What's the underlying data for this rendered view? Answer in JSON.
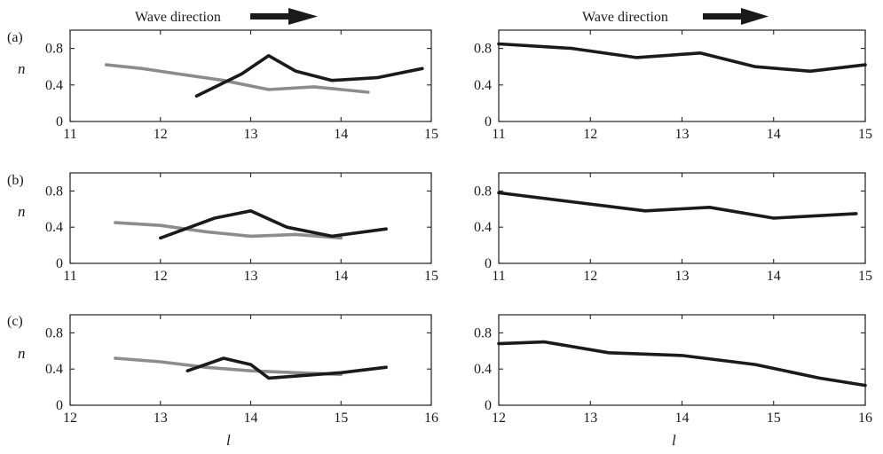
{
  "figure": {
    "header_label": "Wave direction",
    "panel_letters": [
      "(a)",
      "(b)",
      "(c)"
    ],
    "xlabel": "l",
    "ylabel": "n",
    "colors": {
      "current": "#1a1a1a",
      "previous": "#8c8c8c",
      "axis": "#222222"
    }
  },
  "chart_data": [
    {
      "id": "a-left",
      "type": "line",
      "xlabel": "",
      "ylabel": "n",
      "xlim": [
        11,
        15
      ],
      "ylim": [
        0,
        1
      ],
      "xticks": [
        11,
        12,
        13,
        14,
        15
      ],
      "yticks": [
        0,
        0.4,
        0.8
      ],
      "series": [
        {
          "color": "#8c8c8c",
          "points": [
            [
              11.4,
              0.62
            ],
            [
              11.8,
              0.58
            ],
            [
              12.2,
              0.52
            ],
            [
              12.7,
              0.45
            ],
            [
              13.2,
              0.35
            ],
            [
              13.7,
              0.38
            ],
            [
              14.3,
              0.32
            ]
          ]
        },
        {
          "color": "#1a1a1a",
          "points": [
            [
              12.4,
              0.28
            ],
            [
              12.9,
              0.52
            ],
            [
              13.2,
              0.72
            ],
            [
              13.5,
              0.55
            ],
            [
              13.9,
              0.45
            ],
            [
              14.4,
              0.48
            ],
            [
              14.9,
              0.58
            ]
          ]
        }
      ]
    },
    {
      "id": "a-right",
      "type": "line",
      "xlabel": "",
      "ylabel": "",
      "xlim": [
        11,
        15
      ],
      "ylim": [
        0,
        1
      ],
      "xticks": [
        11,
        12,
        13,
        14,
        15
      ],
      "yticks": [
        0,
        0.4,
        0.8
      ],
      "series": [
        {
          "color": "#1a1a1a",
          "points": [
            [
              11.0,
              0.85
            ],
            [
              11.8,
              0.8
            ],
            [
              12.5,
              0.7
            ],
            [
              13.2,
              0.75
            ],
            [
              13.8,
              0.6
            ],
            [
              14.4,
              0.55
            ],
            [
              15.0,
              0.62
            ]
          ]
        }
      ]
    },
    {
      "id": "b-left",
      "type": "line",
      "xlabel": "",
      "ylabel": "n",
      "xlim": [
        11,
        15
      ],
      "ylim": [
        0,
        1
      ],
      "xticks": [
        11,
        12,
        13,
        14,
        15
      ],
      "yticks": [
        0,
        0.4,
        0.8
      ],
      "series": [
        {
          "color": "#8c8c8c",
          "points": [
            [
              11.5,
              0.45
            ],
            [
              12.0,
              0.42
            ],
            [
              12.5,
              0.35
            ],
            [
              13.0,
              0.3
            ],
            [
              13.5,
              0.32
            ],
            [
              14.0,
              0.28
            ]
          ]
        },
        {
          "color": "#1a1a1a",
          "points": [
            [
              12.0,
              0.28
            ],
            [
              12.6,
              0.5
            ],
            [
              13.0,
              0.58
            ],
            [
              13.4,
              0.4
            ],
            [
              13.9,
              0.3
            ],
            [
              14.5,
              0.38
            ]
          ]
        }
      ]
    },
    {
      "id": "b-right",
      "type": "line",
      "xlabel": "",
      "ylabel": "",
      "xlim": [
        11,
        15
      ],
      "ylim": [
        0,
        1
      ],
      "xticks": [
        11,
        12,
        13,
        14,
        15
      ],
      "yticks": [
        0,
        0.4,
        0.8
      ],
      "series": [
        {
          "color": "#1a1a1a",
          "points": [
            [
              11.0,
              0.78
            ],
            [
              11.8,
              0.68
            ],
            [
              12.6,
              0.58
            ],
            [
              13.3,
              0.62
            ],
            [
              14.0,
              0.5
            ],
            [
              14.9,
              0.55
            ]
          ]
        }
      ]
    },
    {
      "id": "c-left",
      "type": "line",
      "xlabel": "l",
      "ylabel": "n",
      "xlim": [
        12,
        16
      ],
      "ylim": [
        0,
        1
      ],
      "xticks": [
        12,
        13,
        14,
        15,
        16
      ],
      "yticks": [
        0,
        0.4,
        0.8
      ],
      "series": [
        {
          "color": "#8c8c8c",
          "points": [
            [
              12.5,
              0.52
            ],
            [
              13.0,
              0.48
            ],
            [
              13.5,
              0.42
            ],
            [
              14.0,
              0.38
            ],
            [
              14.5,
              0.36
            ],
            [
              15.0,
              0.34
            ]
          ]
        },
        {
          "color": "#1a1a1a",
          "points": [
            [
              13.3,
              0.38
            ],
            [
              13.7,
              0.52
            ],
            [
              14.0,
              0.45
            ],
            [
              14.2,
              0.3
            ],
            [
              15.0,
              0.36
            ],
            [
              15.5,
              0.42
            ]
          ]
        }
      ]
    },
    {
      "id": "c-right",
      "type": "line",
      "xlabel": "l",
      "ylabel": "",
      "xlim": [
        12,
        16
      ],
      "ylim": [
        0,
        1
      ],
      "xticks": [
        12,
        13,
        14,
        15,
        16
      ],
      "yticks": [
        0,
        0.4,
        0.8
      ],
      "series": [
        {
          "color": "#1a1a1a",
          "points": [
            [
              12.0,
              0.68
            ],
            [
              12.5,
              0.7
            ],
            [
              13.2,
              0.58
            ],
            [
              14.0,
              0.55
            ],
            [
              14.8,
              0.45
            ],
            [
              15.5,
              0.3
            ],
            [
              16.0,
              0.22
            ]
          ]
        }
      ]
    }
  ]
}
